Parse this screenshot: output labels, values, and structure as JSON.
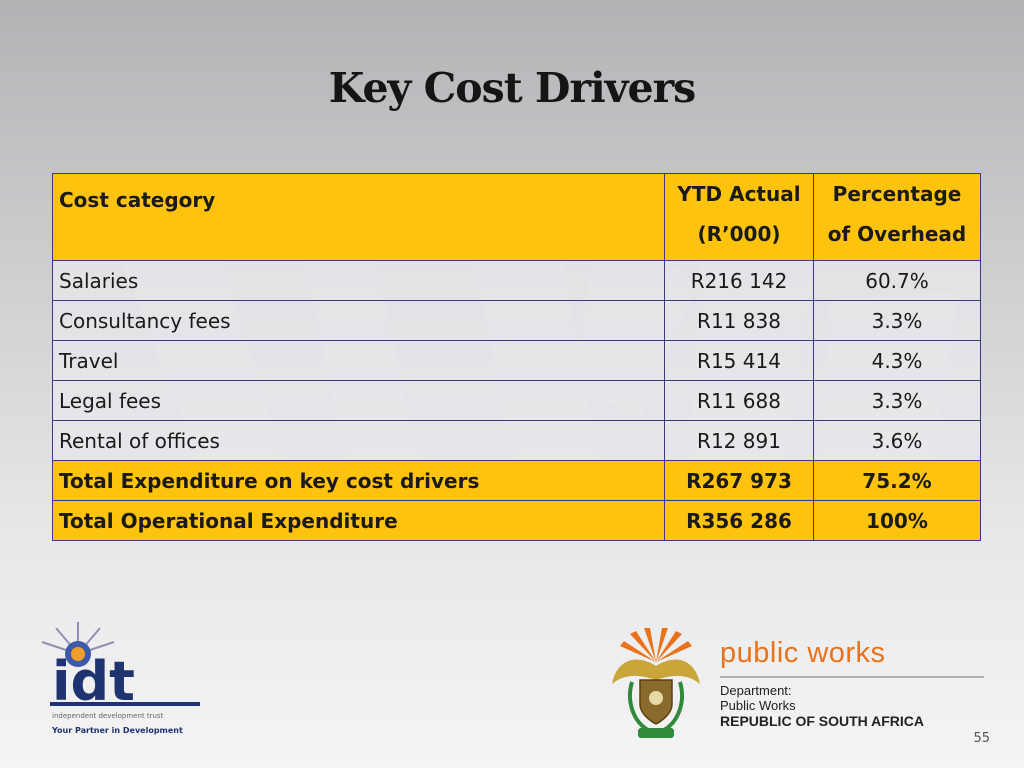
{
  "slide": {
    "title": "Key Cost Drivers",
    "page_number": "55"
  },
  "table": {
    "headers": {
      "category": "Cost category",
      "ytd_line1": "YTD Actual",
      "ytd_line2": "(R’000)",
      "pct_line1": "Percentage",
      "pct_line2": "of Overhead"
    },
    "rows": [
      {
        "category": "Salaries",
        "ytd": "R216 142",
        "pct": "60.7%"
      },
      {
        "category": "Consultancy fees",
        "ytd": "R11 838",
        "pct": "3.3%"
      },
      {
        "category": "Travel",
        "ytd": "R15 414",
        "pct": "4.3%"
      },
      {
        "category": "Legal fees",
        "ytd": "R11 688",
        "pct": "3.3%"
      },
      {
        "category": "Rental of offices",
        "ytd": "R12 891",
        "pct": "3.6%"
      }
    ],
    "totals": [
      {
        "category": "Total Expenditure on key cost drivers",
        "ytd": "R267 973",
        "pct": "75.2%"
      },
      {
        "category": "Total Operational Expenditure",
        "ytd": "R356 286",
        "pct": "100%"
      }
    ]
  },
  "logos": {
    "idt": {
      "icon": "idt-logo-icon",
      "wordmark": "idt",
      "sub": "independent development trust",
      "tagline": "Your Partner in Development"
    },
    "public_works": {
      "icon": "coat-of-arms-icon",
      "wordmark": "public works",
      "line1": "Department:",
      "line2": "Public Works",
      "line3": "REPUBLIC OF SOUTH AFRICA"
    }
  },
  "colors": {
    "header_fill": "#fdc30e",
    "border": "#3a3a80",
    "public_works_orange": "#e8731a",
    "idt_navy": "#1f3370"
  }
}
